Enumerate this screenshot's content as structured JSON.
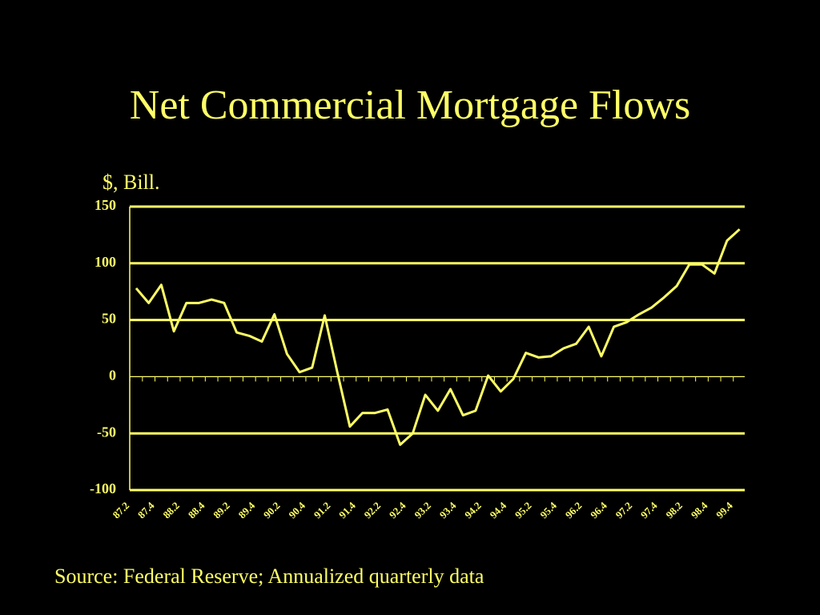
{
  "chart_data": {
    "type": "line",
    "title": "Net Commercial Mortgage Flows",
    "y_label": "$, Bill.",
    "source": "Source: Federal Reserve; Annualized quarterly data",
    "categories": [
      "87.2",
      null,
      "87.4",
      null,
      "88.2",
      null,
      "88.4",
      null,
      "89.2",
      null,
      "89.4",
      null,
      "90.2",
      null,
      "90.4",
      null,
      "91.2",
      null,
      "91.4",
      null,
      "92.2",
      null,
      "92.4",
      null,
      "93.2",
      null,
      "93.4",
      null,
      "94.2",
      null,
      "94.4",
      null,
      "95.2",
      null,
      "95.4",
      null,
      "96.2",
      null,
      "96.4",
      null,
      "97.2",
      null,
      "97.4",
      null,
      "98.2",
      null,
      "98.4",
      null,
      "99.4"
    ],
    "values": [
      78,
      65,
      81,
      40,
      65,
      65,
      68,
      65,
      39,
      36,
      31,
      55,
      20,
      4,
      8,
      54,
      4,
      -44,
      -32,
      -32,
      -29,
      -60,
      -50,
      -16,
      -30,
      -11,
      -34,
      -30,
      1,
      -13,
      -2,
      21,
      17,
      18,
      25,
      29,
      44,
      18,
      44,
      48,
      55,
      61,
      70,
      80,
      99,
      99,
      91,
      120,
      130
    ],
    "color": "#ffff66",
    "ylim": [
      -100,
      150
    ],
    "yticks": [
      -100,
      -50,
      0,
      50,
      100,
      150
    ],
    "grid": true
  }
}
